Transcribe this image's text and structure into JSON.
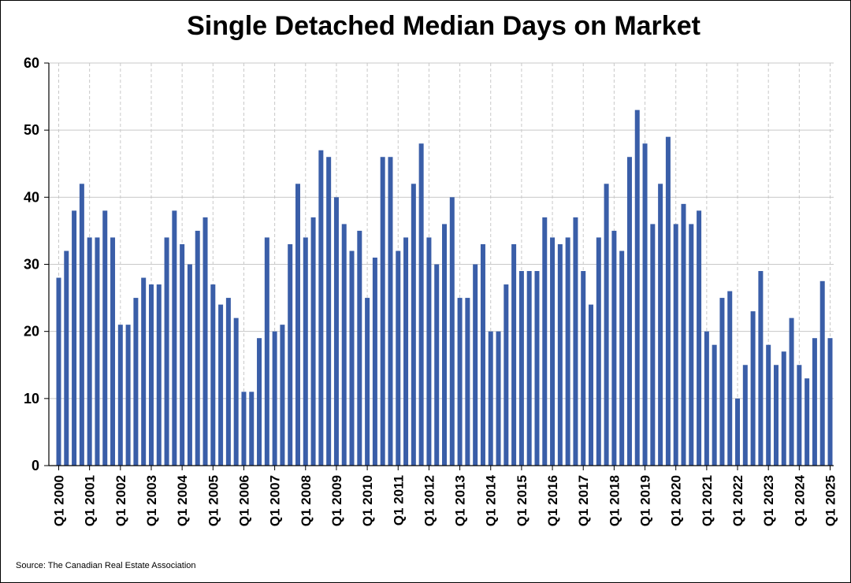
{
  "chart_data": {
    "type": "bar",
    "title": "Single Detached Median Days on Market",
    "source": "Source: The Canadian Real Estate Association",
    "xlabel": "",
    "ylabel": "",
    "ylim": [
      0,
      60
    ],
    "y_ticks": [
      0,
      10,
      20,
      30,
      40,
      50,
      60
    ],
    "grid": true,
    "bar_color": "#3a5ea8",
    "x_tick_labels": [
      "Q1 2000",
      "Q1 2001",
      "Q1 2002",
      "Q1 2003",
      "Q1 2004",
      "Q1 2005",
      "Q1 2006",
      "Q1 2007",
      "Q1 2008",
      "Q1 2009",
      "Q1 2010",
      "Q1 2011",
      "Q1 2012",
      "Q1 2013",
      "Q1 2014",
      "Q1 2015",
      "Q1 2016",
      "Q1 2017",
      "Q1 2018",
      "Q1 2019",
      "Q1 2020",
      "Q1 2021",
      "Q1 2022",
      "Q1 2023",
      "Q1 2024",
      "Q1 2025"
    ],
    "categories": [
      "Q1 2000",
      "Q2 2000",
      "Q3 2000",
      "Q4 2000",
      "Q1 2001",
      "Q2 2001",
      "Q3 2001",
      "Q4 2001",
      "Q1 2002",
      "Q2 2002",
      "Q3 2002",
      "Q4 2002",
      "Q1 2003",
      "Q2 2003",
      "Q3 2003",
      "Q4 2003",
      "Q1 2004",
      "Q2 2004",
      "Q3 2004",
      "Q4 2004",
      "Q1 2005",
      "Q2 2005",
      "Q3 2005",
      "Q4 2005",
      "Q1 2006",
      "Q2 2006",
      "Q3 2006",
      "Q4 2006",
      "Q1 2007",
      "Q2 2007",
      "Q3 2007",
      "Q4 2007",
      "Q1 2008",
      "Q2 2008",
      "Q3 2008",
      "Q4 2008",
      "Q1 2009",
      "Q2 2009",
      "Q3 2009",
      "Q4 2009",
      "Q1 2010",
      "Q2 2010",
      "Q3 2010",
      "Q4 2010",
      "Q1 2011",
      "Q2 2011",
      "Q3 2011",
      "Q4 2011",
      "Q1 2012",
      "Q2 2012",
      "Q3 2012",
      "Q4 2012",
      "Q1 2013",
      "Q2 2013",
      "Q3 2013",
      "Q4 2013",
      "Q1 2014",
      "Q2 2014",
      "Q3 2014",
      "Q4 2014",
      "Q1 2015",
      "Q2 2015",
      "Q3 2015",
      "Q4 2015",
      "Q1 2016",
      "Q2 2016",
      "Q3 2016",
      "Q4 2016",
      "Q1 2017",
      "Q2 2017",
      "Q3 2017",
      "Q4 2017",
      "Q1 2018",
      "Q2 2018",
      "Q3 2018",
      "Q4 2018",
      "Q1 2019",
      "Q2 2019",
      "Q3 2019",
      "Q4 2019",
      "Q1 2020",
      "Q2 2020",
      "Q3 2020",
      "Q4 2020",
      "Q1 2021",
      "Q2 2021",
      "Q3 2021",
      "Q4 2021",
      "Q1 2022",
      "Q2 2022",
      "Q3 2022",
      "Q4 2022",
      "Q1 2023",
      "Q2 2023",
      "Q3 2023",
      "Q4 2023",
      "Q1 2024",
      "Q2 2024",
      "Q3 2024",
      "Q4 2024",
      "Q1 2025"
    ],
    "values": [
      28,
      32,
      38,
      42,
      34,
      34,
      38,
      34,
      21,
      21,
      25,
      28,
      27,
      27,
      34,
      38,
      33,
      30,
      35,
      37,
      27,
      24,
      25,
      22,
      11,
      11,
      19,
      34,
      20,
      21,
      33,
      42,
      34,
      37,
      47,
      46,
      40,
      36,
      32,
      35,
      25,
      31,
      46,
      46,
      32,
      34,
      42,
      48,
      34,
      30,
      36,
      40,
      25,
      25,
      30,
      33,
      20,
      20,
      27,
      33,
      29,
      29,
      29,
      37,
      34,
      33,
      34,
      37,
      29,
      24,
      34,
      42,
      35,
      32,
      46,
      53,
      48,
      36,
      42,
      49,
      36,
      39,
      36,
      38,
      20,
      18,
      25,
      26,
      10,
      15,
      23,
      29,
      18,
      15,
      17,
      22,
      15,
      13,
      19,
      27.5,
      19
    ]
  }
}
